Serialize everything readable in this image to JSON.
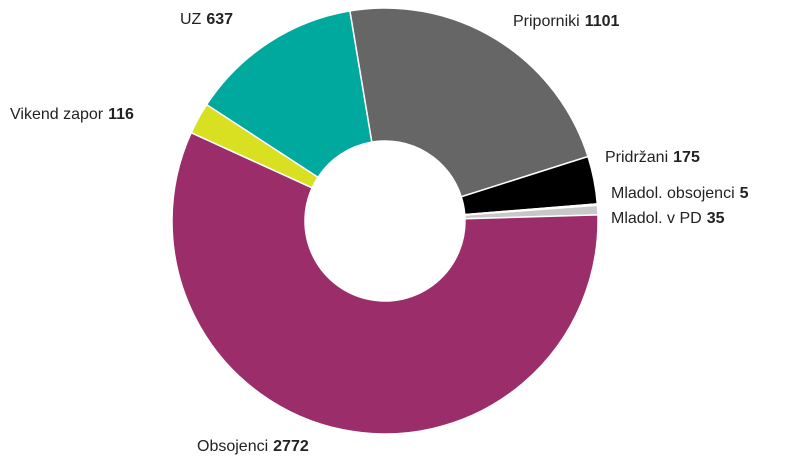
{
  "chart_data": {
    "type": "donut",
    "categories": [
      "Priporniki",
      "Pridržani",
      "Mladol. obsojenci",
      "Mladol. v PD",
      "Obsojenci",
      "Vikend zapor",
      "UZ"
    ],
    "values": [
      1101,
      175,
      5,
      35,
      2772,
      116,
      637
    ],
    "colors": [
      "#666667",
      "#000000",
      "#e8392a",
      "#c8c8c8",
      "#9b2d6a",
      "#d9e021",
      "#00a99d"
    ]
  }
}
